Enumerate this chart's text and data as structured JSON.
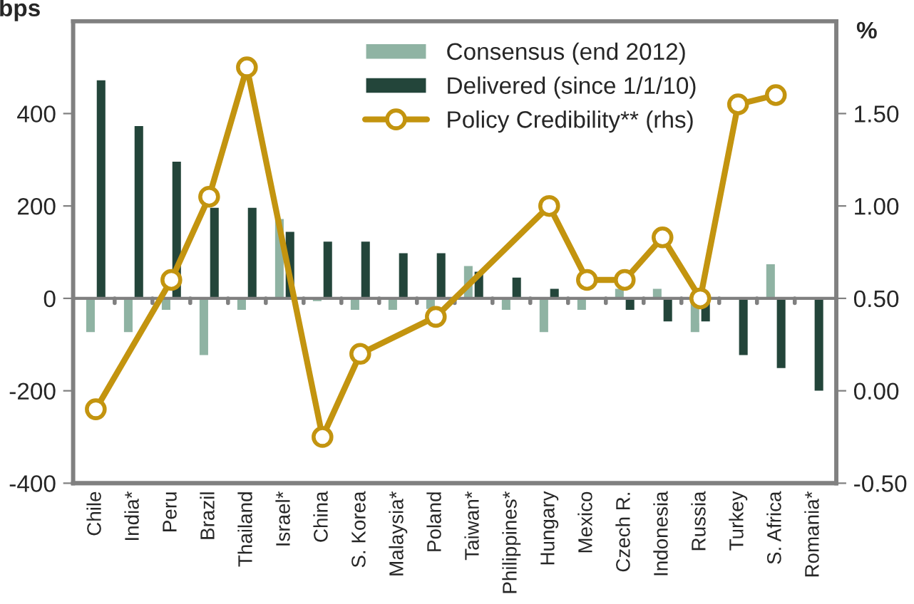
{
  "chart_data": {
    "type": "bar",
    "categories": [
      "Chile",
      "India*",
      "Peru",
      "Brazil",
      "Thailand",
      "Israel*",
      "China",
      "S. Korea",
      "Malaysia*",
      "Poland",
      "Taiwan*",
      "Philippines*",
      "Hungary",
      "Mexico",
      "Czech R.",
      "Indonesia",
      "Russia",
      "Turkey",
      "S. Africa",
      "Romania*"
    ],
    "series": [
      {
        "name": "Consensus (end 2012)",
        "color": "#8fb3a3",
        "values": [
          -75,
          -75,
          -27,
          -125,
          -27,
          174,
          -8,
          -27,
          -27,
          -25,
          72,
          -27,
          -75,
          -27,
          23,
          23,
          -75,
          null,
          76,
          null
        ]
      },
      {
        "name": "Delivered (since 1/1/10)",
        "color": "#23453a",
        "values": [
          474,
          375,
          298,
          198,
          198,
          146,
          125,
          125,
          100,
          100,
          60,
          47,
          23,
          null,
          -27,
          -52,
          -52,
          -125,
          -153,
          -202
        ]
      },
      {
        "name": "Policy Credibility** (rhs)",
        "type": "line",
        "axis": "y2",
        "color": "#c3940f",
        "marker": "circle",
        "values": [
          -0.1,
          null,
          0.6,
          1.05,
          1.75,
          null,
          -0.25,
          0.2,
          null,
          0.4,
          null,
          null,
          1.0,
          0.6,
          0.6,
          0.83,
          0.5,
          1.55,
          1.6,
          null
        ]
      }
    ],
    "ylabel": "bps",
    "y2label": "%",
    "ylim": [
      -400,
      600
    ],
    "yticks": [
      -400,
      -200,
      0,
      200,
      400
    ],
    "y2lim": [
      -0.5,
      2.0
    ],
    "y2ticks": [
      {
        "value": -0.5,
        "label": "-0.50"
      },
      {
        "value": 0.0,
        "label": "0.00"
      },
      {
        "value": 0.5,
        "label": "0.50"
      },
      {
        "value": 1.0,
        "label": "1.00"
      },
      {
        "value": 1.5,
        "label": "1.50"
      }
    ],
    "ref_lines": [
      {
        "axis": "y",
        "value": 0,
        "color": "#808080"
      }
    ],
    "grid": false,
    "legend": "top"
  }
}
